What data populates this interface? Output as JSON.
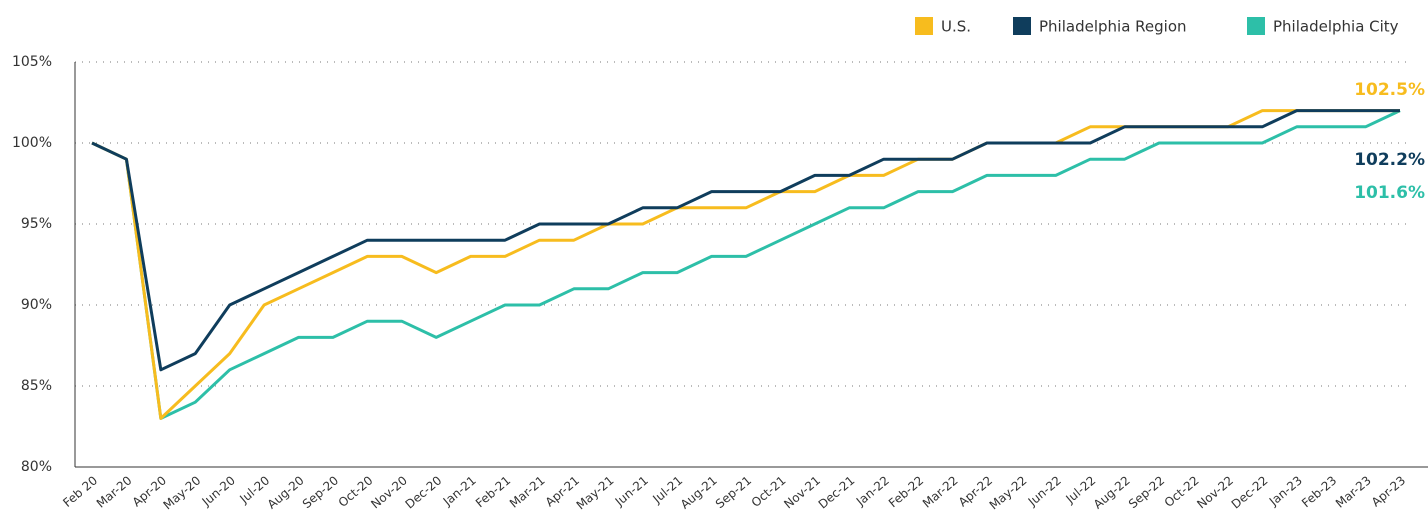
{
  "chart_data": {
    "type": "line",
    "categories": [
      "Feb 20",
      "Mar-20",
      "Apr-20",
      "May-20",
      "Jun-20",
      "Jul-20",
      "Aug-20",
      "Sep-20",
      "Oct-20",
      "Nov-20",
      "Dec-20",
      "Jan-21",
      "Feb-21",
      "Mar-21",
      "Apr-21",
      "May-21",
      "Jun-21",
      "Jul-21",
      "Aug-21",
      "Sep-21",
      "Oct-21",
      "Nov-21",
      "Dec-21",
      "Jan-22",
      "Feb-22",
      "Mar-22",
      "Apr-22",
      "May-22",
      "Jun-22",
      "Jul-22",
      "Aug-22",
      "Sep-22",
      "Oct-22",
      "Nov-22",
      "Dec-22",
      "Jan-23",
      "Feb-23",
      "Mar-23",
      "Apr-23"
    ],
    "series": [
      {
        "name": "U.S.",
        "color": "#f7bc1e",
        "values": [
          100,
          99,
          83,
          85,
          87,
          90,
          91,
          92,
          93,
          93,
          92,
          93,
          93,
          94,
          94,
          95,
          95,
          96,
          96,
          96,
          97,
          97,
          98,
          98,
          99,
          99,
          100,
          100,
          100,
          101,
          101,
          101,
          101,
          101,
          102,
          102,
          102,
          102,
          102
        ]
      },
      {
        "name": "Philadelphia Region",
        "color": "#0f3d5c",
        "values": [
          100,
          99,
          86,
          87,
          90,
          91,
          92,
          93,
          94,
          94,
          94,
          94,
          94,
          95,
          95,
          95,
          96,
          96,
          97,
          97,
          97,
          98,
          98,
          99,
          99,
          99,
          100,
          100,
          100,
          100,
          101,
          101,
          101,
          101,
          101,
          102,
          102,
          102,
          102
        ]
      },
      {
        "name": "Philadelphia City",
        "color": "#2dbfa8",
        "values": [
          100,
          99,
          83,
          84,
          86,
          87,
          88,
          88,
          89,
          89,
          88,
          89,
          90,
          90,
          91,
          91,
          92,
          92,
          93,
          93,
          94,
          95,
          96,
          96,
          97,
          97,
          98,
          98,
          98,
          99,
          99,
          100,
          100,
          100,
          100,
          101,
          101,
          101,
          102
        ]
      }
    ],
    "annotations": [
      "102.5%",
      "102.2%",
      "101.6%"
    ],
    "ylim": [
      80,
      105
    ],
    "yticks": [
      {
        "value": 80,
        "label": "80%"
      },
      {
        "value": 85,
        "label": "85%"
      },
      {
        "value": 90,
        "label": "90%"
      },
      {
        "value": 95,
        "label": "95%"
      },
      {
        "value": 100,
        "label": "100%"
      },
      {
        "value": 105,
        "label": "105%"
      }
    ],
    "grid": true,
    "legend": "top-right"
  }
}
